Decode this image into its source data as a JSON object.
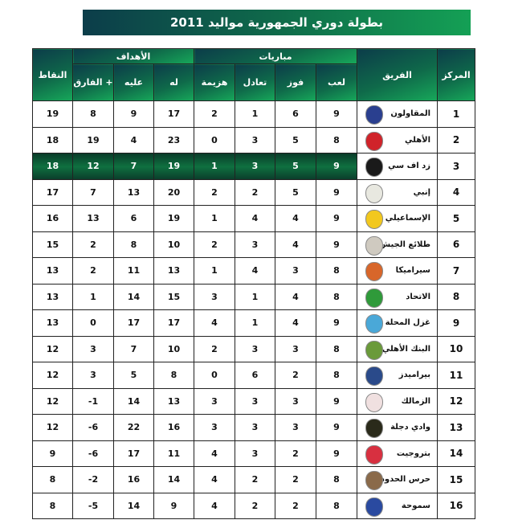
{
  "title": "بطولة دوري الجمهورية مواليد 2011",
  "headers": {
    "points": "النقاط",
    "goals": "الأهداف",
    "matches": "مباريات",
    "team": "الفريق",
    "rank": "المركز",
    "diff": "الفارق +",
    "against": "عليه",
    "for": "له",
    "losses": "هزيمة",
    "draws": "تعادل",
    "wins": "فوز",
    "played": "لعب"
  },
  "highlight_color": "#0f7040",
  "rows": [
    {
      "rank": "1",
      "team": "المقاولون",
      "logo": "#2a3f8f",
      "played": "9",
      "wins": "6",
      "draws": "1",
      "losses": "2",
      "for": "17",
      "against": "9",
      "diff": "8",
      "points": "19"
    },
    {
      "rank": "2",
      "team": "الأهلي",
      "logo": "#d0232a",
      "played": "8",
      "wins": "5",
      "draws": "3",
      "losses": "0",
      "for": "23",
      "against": "4",
      "diff": "19",
      "points": "18"
    },
    {
      "rank": "3",
      "team": "زد اف سي",
      "logo": "#1a1a1a",
      "played": "9",
      "wins": "5",
      "draws": "3",
      "losses": "1",
      "for": "19",
      "against": "7",
      "diff": "12",
      "points": "18",
      "highlight": true
    },
    {
      "rank": "4",
      "team": "إنبي",
      "logo": "#e8e8e0",
      "played": "9",
      "wins": "5",
      "draws": "2",
      "losses": "2",
      "for": "20",
      "against": "13",
      "diff": "7",
      "points": "17"
    },
    {
      "rank": "5",
      "team": "الإسماعيلي",
      "logo": "#f2c81e",
      "played": "9",
      "wins": "4",
      "draws": "4",
      "losses": "1",
      "for": "19",
      "against": "6",
      "diff": "13",
      "points": "16"
    },
    {
      "rank": "6",
      "team": "طلائع الجيش",
      "logo": "#cfcac0",
      "played": "9",
      "wins": "4",
      "draws": "3",
      "losses": "2",
      "for": "10",
      "against": "8",
      "diff": "2",
      "points": "15"
    },
    {
      "rank": "7",
      "team": "سيراميكا",
      "logo": "#d8662a",
      "played": "8",
      "wins": "3",
      "draws": "4",
      "losses": "1",
      "for": "13",
      "against": "11",
      "diff": "2",
      "points": "13"
    },
    {
      "rank": "8",
      "team": "الاتحاد",
      "logo": "#2f9a3a",
      "played": "8",
      "wins": "4",
      "draws": "1",
      "losses": "3",
      "for": "15",
      "against": "14",
      "diff": "1",
      "points": "13"
    },
    {
      "rank": "9",
      "team": "غزل المحلة",
      "logo": "#4aa8d8",
      "played": "9",
      "wins": "4",
      "draws": "1",
      "losses": "4",
      "for": "17",
      "against": "17",
      "diff": "0",
      "points": "13"
    },
    {
      "rank": "10",
      "team": "البنك الأهلي",
      "logo": "#6a9a3a",
      "played": "8",
      "wins": "3",
      "draws": "3",
      "losses": "2",
      "for": "10",
      "against": "7",
      "diff": "3",
      "points": "12"
    },
    {
      "rank": "11",
      "team": "بيراميدز",
      "logo": "#2a4a8a",
      "played": "8",
      "wins": "2",
      "draws": "6",
      "losses": "0",
      "for": "8",
      "against": "5",
      "diff": "3",
      "points": "12"
    },
    {
      "rank": "12",
      "team": "الزمالك",
      "logo": "#f0e0e0",
      "played": "9",
      "wins": "3",
      "draws": "3",
      "losses": "3",
      "for": "13",
      "against": "14",
      "diff": "-1",
      "points": "12"
    },
    {
      "rank": "13",
      "team": "وادي دجلة",
      "logo": "#2a2a1a",
      "played": "9",
      "wins": "3",
      "draws": "3",
      "losses": "3",
      "for": "16",
      "against": "22",
      "diff": "-6",
      "points": "12"
    },
    {
      "rank": "14",
      "team": "بتروجيت",
      "logo": "#d83040",
      "played": "9",
      "wins": "2",
      "draws": "3",
      "losses": "4",
      "for": "11",
      "against": "17",
      "diff": "-6",
      "points": "9"
    },
    {
      "rank": "15",
      "team": "حرس الحدود",
      "logo": "#8a6a4a",
      "played": "8",
      "wins": "2",
      "draws": "2",
      "losses": "4",
      "for": "14",
      "against": "16",
      "diff": "-2",
      "points": "8"
    },
    {
      "rank": "16",
      "team": "سموحة",
      "logo": "#2a4aa0",
      "played": "8",
      "wins": "2",
      "draws": "2",
      "losses": "4",
      "for": "9",
      "against": "14",
      "diff": "-5",
      "points": "8"
    }
  ]
}
